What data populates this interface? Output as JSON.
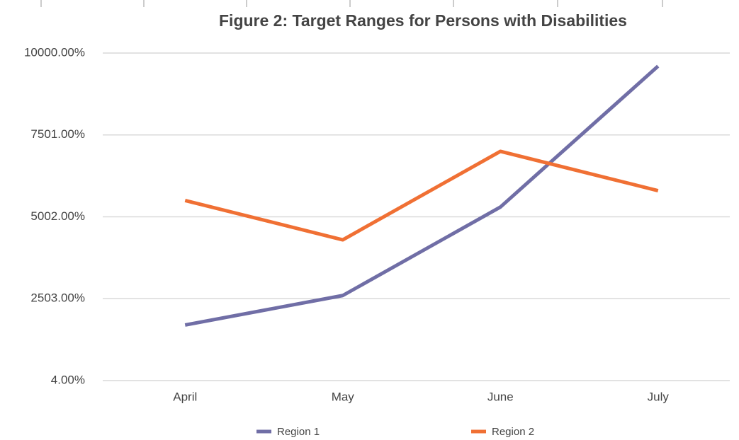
{
  "chart_data": {
    "type": "line",
    "title": "Figure 2: Target Ranges for Persons with Disabilities",
    "categories": [
      "April",
      "May",
      "June",
      "July"
    ],
    "series": [
      {
        "name": "Region 1",
        "color": "#706ea6",
        "values": [
          1700,
          2600,
          5300,
          9600
        ]
      },
      {
        "name": "Region 2",
        "color": "#f07034",
        "values": [
          5500,
          4300,
          7000,
          5800
        ]
      }
    ],
    "ylim": [
      4,
      10000
    ],
    "yticks": [
      {
        "value": 4,
        "label": "4.00%"
      },
      {
        "value": 2503,
        "label": "2503.00%"
      },
      {
        "value": 5002,
        "label": "5002.00%"
      },
      {
        "value": 7501,
        "label": "7501.00%"
      },
      {
        "value": 10000,
        "label": "10000.00%"
      }
    ],
    "grid": true,
    "legend": "bottom"
  }
}
